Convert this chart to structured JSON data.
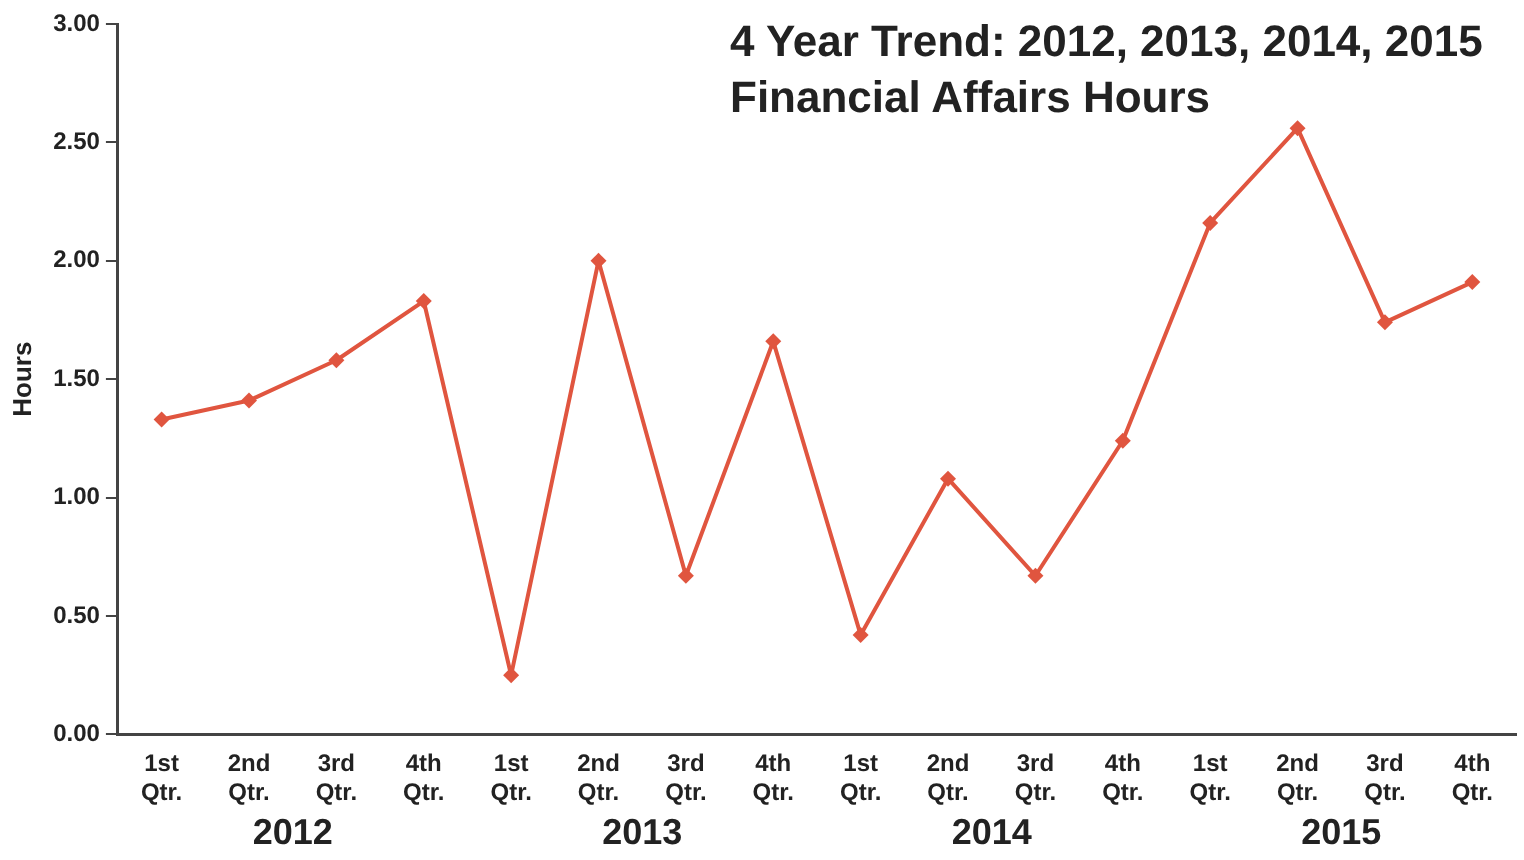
{
  "chart_data": {
    "type": "line",
    "title": "4 Year Trend: 2012, 2013, 2014, 2015",
    "subtitle": "Financial Affairs Hours",
    "ylabel": "Hours",
    "categories": [
      "1st Qtr.",
      "2nd Qtr.",
      "3rd Qtr.",
      "4th Qtr.",
      "1st Qtr.",
      "2nd Qtr.",
      "3rd Qtr.",
      "4th Qtr.",
      "1st Qtr.",
      "2nd Qtr.",
      "3rd Qtr.",
      "4th Qtr.",
      "1st Qtr.",
      "2nd Qtr.",
      "3rd Qtr.",
      "4th Qtr."
    ],
    "series": [
      {
        "color": "#e0553f",
        "values": [
          1.33,
          1.41,
          1.58,
          1.83,
          0.25,
          2.0,
          0.67,
          1.66,
          0.42,
          1.08,
          0.67,
          1.24,
          2.16,
          2.56,
          1.74,
          1.91
        ]
      }
    ],
    "annotations": [
      "2012",
      "2013",
      "2014",
      "2015"
    ],
    "ylim": [
      0,
      3
    ],
    "yticks": [
      {
        "value": 0,
        "label": "0.00"
      },
      {
        "value": 0.5,
        "label": "0.50"
      },
      {
        "value": 1,
        "label": "1.00"
      },
      {
        "value": 1.5,
        "label": "1.50"
      },
      {
        "value": 2,
        "label": "2.00"
      },
      {
        "value": 2.5,
        "label": "2.50"
      },
      {
        "value": 3,
        "label": "3.00"
      }
    ],
    "grid": false,
    "legend": false,
    "marker": "diamond",
    "line_style": "solid"
  }
}
